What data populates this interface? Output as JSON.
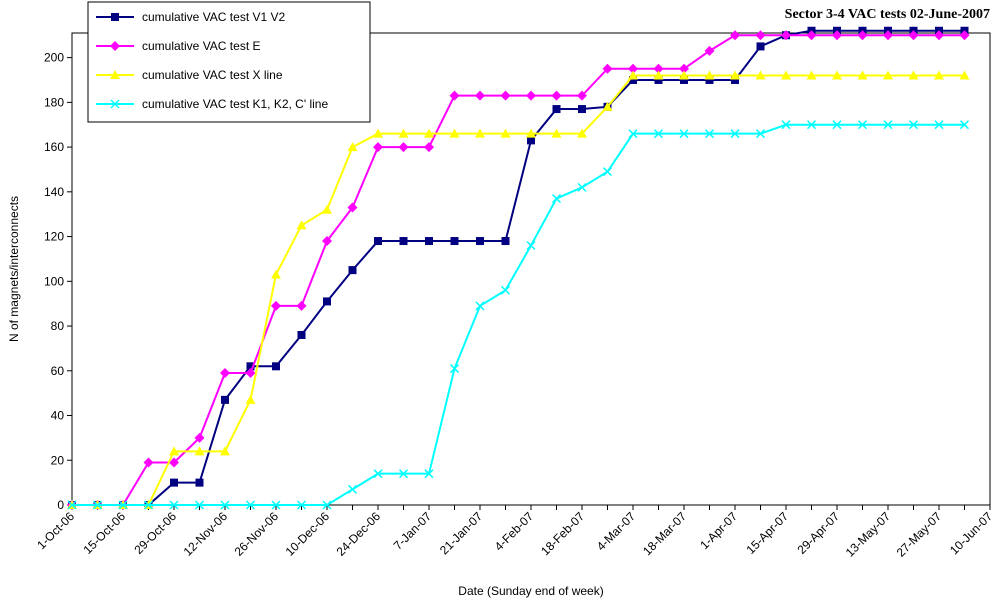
{
  "chart_data": {
    "type": "line",
    "title": "Sector 3-4 VAC tests 02-June-2007",
    "x_label": "Date (Sunday end of week)",
    "y_label": "N of magnets/interconnects",
    "categories": [
      "1-Oct-06",
      null,
      "15-Oct-06",
      null,
      "29-Oct-06",
      null,
      "12-Nov-06",
      null,
      "26-Nov-06",
      null,
      "10-Dec-06",
      null,
      "24-Dec-06",
      null,
      "7-Jan-07",
      null,
      "21-Jan-07",
      null,
      "4-Feb-07",
      null,
      "18-Feb-07",
      null,
      "4-Mar-07",
      null,
      "18-Mar-07",
      null,
      "1-Apr-07",
      null,
      "15-Apr-07",
      null,
      "29-Apr-07",
      null,
      "13-May-07",
      null,
      "27-May-07",
      null,
      "10-Jun-07"
    ],
    "ylim": [
      0,
      211
    ],
    "yticks": [
      0,
      20,
      40,
      60,
      80,
      100,
      120,
      140,
      160,
      180,
      200
    ],
    "grid": false,
    "legend": "top-left",
    "series": [
      {
        "name": "cumulative VAC test V1 V2",
        "color": "#000080",
        "marker": "square",
        "values": [
          0,
          0,
          0,
          0,
          10,
          10,
          47,
          62,
          62,
          76,
          91,
          105,
          118,
          118,
          118,
          118,
          118,
          118,
          163,
          177,
          177,
          178,
          190,
          190,
          190,
          190,
          190,
          205,
          210,
          212,
          212,
          212,
          212,
          212,
          212,
          212,
          null
        ]
      },
      {
        "name": "cumulative VAC test E",
        "color": "#ff00ff",
        "marker": "diamond",
        "values": [
          0,
          0,
          0,
          19,
          19,
          30,
          59,
          59,
          89,
          89,
          118,
          133,
          160,
          160,
          160,
          183,
          183,
          183,
          183,
          183,
          183,
          195,
          195,
          195,
          195,
          203,
          210,
          210,
          210,
          210,
          210,
          210,
          210,
          210,
          210,
          210,
          null
        ]
      },
      {
        "name": "cumulative VAC test X line",
        "color": "#ffff00",
        "marker": "triangle",
        "values": [
          0,
          0,
          0,
          0,
          24,
          24,
          24,
          47,
          103,
          125,
          132,
          160,
          166,
          166,
          166,
          166,
          166,
          166,
          166,
          166,
          166,
          178,
          192,
          192,
          192,
          192,
          192,
          192,
          192,
          192,
          192,
          192,
          192,
          192,
          192,
          192,
          null
        ]
      },
      {
        "name": "cumulative VAC test K1, K2, C' line",
        "color": "#00ffff",
        "marker": "cross",
        "values": [
          0,
          0,
          0,
          0,
          0,
          0,
          0,
          0,
          0,
          0,
          0,
          7,
          14,
          14,
          14,
          61,
          89,
          96,
          116,
          137,
          142,
          149,
          166,
          166,
          166,
          166,
          166,
          166,
          170,
          170,
          170,
          170,
          170,
          170,
          170,
          170,
          null
        ]
      }
    ]
  }
}
